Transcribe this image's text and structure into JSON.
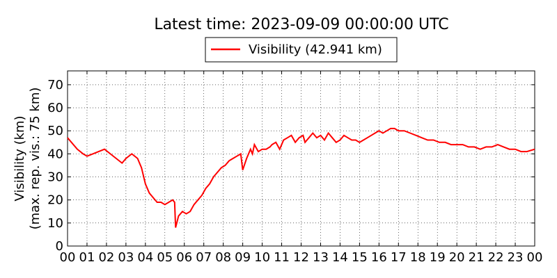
{
  "chart_data": {
    "type": "line",
    "title": "Latest time: 2023-09-09 00:00:00 UTC",
    "ylabel_line1": "Visibility (km)",
    "ylabel_line2": "(max. rep. vis.: 75 km)",
    "xlabel": "",
    "legend_position": "top-center",
    "grid": true,
    "xlim": [
      0,
      24
    ],
    "ylim": [
      0,
      76
    ],
    "x_ticks": [
      "00",
      "01",
      "02",
      "03",
      "04",
      "05",
      "06",
      "07",
      "08",
      "09",
      "10",
      "11",
      "12",
      "13",
      "14",
      "15",
      "16",
      "17",
      "18",
      "19",
      "20",
      "21",
      "22",
      "23",
      "00"
    ],
    "y_ticks": [
      0,
      10,
      20,
      30,
      40,
      50,
      60,
      70
    ],
    "series": [
      {
        "name": "Visibility (42.941 km)",
        "color": "#ff0000",
        "x": [
          0.0,
          0.2,
          0.5,
          0.8,
          1.0,
          1.3,
          1.6,
          1.9,
          2.2,
          2.5,
          2.8,
          3.0,
          3.3,
          3.6,
          3.8,
          4.0,
          4.2,
          4.4,
          4.6,
          4.8,
          5.0,
          5.2,
          5.4,
          5.5,
          5.55,
          5.7,
          5.9,
          6.1,
          6.3,
          6.5,
          6.7,
          6.9,
          7.1,
          7.3,
          7.5,
          7.7,
          7.9,
          8.1,
          8.3,
          8.5,
          8.7,
          8.9,
          9.0,
          9.2,
          9.4,
          9.5,
          9.6,
          9.8,
          10.0,
          10.2,
          10.4,
          10.5,
          10.7,
          10.9,
          11.1,
          11.3,
          11.5,
          11.7,
          11.9,
          12.1,
          12.2,
          12.4,
          12.6,
          12.8,
          13.0,
          13.2,
          13.4,
          13.6,
          13.8,
          14.0,
          14.2,
          14.4,
          14.6,
          14.8,
          15.0,
          15.2,
          15.4,
          15.6,
          15.8,
          16.0,
          16.2,
          16.4,
          16.6,
          16.8,
          17.0,
          17.3,
          17.6,
          17.9,
          18.2,
          18.5,
          18.8,
          19.1,
          19.4,
          19.7,
          20.0,
          20.3,
          20.6,
          20.9,
          21.2,
          21.5,
          21.8,
          22.1,
          22.4,
          22.7,
          23.0,
          23.3,
          23.6,
          24.0
        ],
        "y": [
          47,
          45,
          42,
          40,
          39,
          40,
          41,
          42,
          40,
          38,
          36,
          38,
          40,
          38,
          34,
          27,
          23,
          21,
          19,
          19,
          18,
          19,
          20,
          19,
          8,
          13,
          15,
          14,
          15,
          18,
          20,
          22,
          25,
          27,
          30,
          32,
          34,
          35,
          37,
          38,
          39,
          40,
          33,
          38,
          42,
          40,
          44,
          41,
          42,
          42,
          43,
          44,
          45,
          42,
          46,
          47,
          48,
          45,
          47,
          48,
          45,
          47,
          49,
          47,
          48,
          46,
          49,
          47,
          45,
          46,
          48,
          47,
          46,
          46,
          45,
          46,
          47,
          48,
          49,
          50,
          49,
          50,
          51,
          51,
          50,
          50,
          49,
          48,
          47,
          46,
          46,
          45,
          45,
          44,
          44,
          44,
          43,
          43,
          42,
          43,
          43,
          44,
          43,
          42,
          42,
          41,
          41,
          42
        ]
      }
    ]
  }
}
